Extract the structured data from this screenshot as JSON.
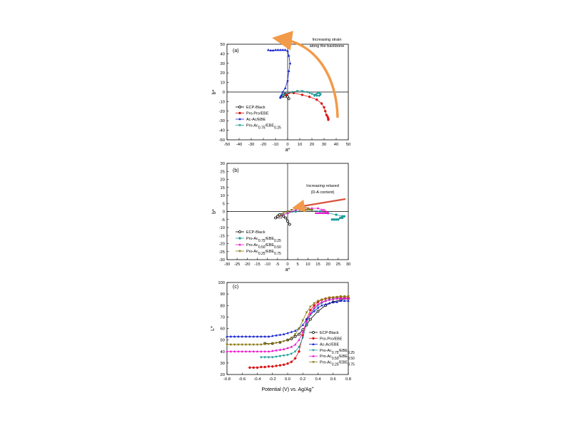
{
  "chart_data": [
    {
      "type": "scatter",
      "panel_label": "(a)",
      "xlabel": "a*",
      "ylabel": "b*",
      "xlim": [
        -50,
        50
      ],
      "ylim": [
        -50,
        50
      ],
      "xticks": [
        -50,
        -40,
        -30,
        -20,
        -10,
        0,
        10,
        20,
        30,
        40,
        50
      ],
      "yticks": [
        -50,
        -40,
        -30,
        -20,
        -10,
        0,
        10,
        20,
        30,
        40,
        50
      ],
      "annotation": "Increasing strain along the backbone",
      "legend_position": "bottom-left",
      "series": [
        {
          "name": "ECP-Black",
          "color": "#000000",
          "marker": "open-circle",
          "x": [
            -4,
            -3,
            -2,
            -1,
            0,
            1
          ],
          "y": [
            -4,
            -3,
            -2,
            -3,
            -5,
            -7
          ]
        },
        {
          "name": "Pro-Pro/EBE",
          "color": "#dd1111",
          "marker": "circle",
          "x": [
            -1,
            1,
            5,
            12,
            18,
            24,
            28,
            30,
            31,
            32,
            33,
            33.5,
            33.5
          ],
          "y": [
            -3,
            -1,
            -1,
            -3,
            -5,
            -8,
            -12,
            -16,
            -20,
            -24,
            -26,
            -28,
            -29
          ]
        },
        {
          "name": "Ac-Ac/EBE",
          "color": "#1522cc",
          "marker": "triangle-up",
          "x": [
            -16,
            -14,
            -12,
            -10,
            -8,
            -6,
            -4,
            -2,
            0,
            1,
            2,
            1,
            0,
            -2,
            -4,
            -5,
            -6,
            -6
          ],
          "y": [
            44,
            43.5,
            43.5,
            44,
            44,
            44,
            44,
            44,
            43,
            38,
            30,
            22,
            12,
            4,
            0,
            -3,
            -5,
            -6
          ]
        },
        {
          "name": "Pro-Ac0.75/EBE0.25",
          "name_html": "Pro-Ac<tspan baseline-shift='sub' font-size='5'>0.75</tspan>/EBE<tspan baseline-shift='sub' font-size='5'>0.25</tspan>",
          "color": "#1c9b9b",
          "marker": "triangle-down",
          "x": [
            -4,
            0,
            4,
            8,
            12,
            16,
            18,
            20,
            22,
            24,
            26,
            27,
            27,
            26,
            25,
            24,
            23,
            22
          ],
          "y": [
            -3,
            -1,
            0,
            1,
            1,
            0,
            -1,
            -2,
            -3,
            -4,
            -4,
            -3,
            -2,
            -1,
            -1,
            -2,
            -3,
            -4
          ]
        }
      ]
    },
    {
      "type": "scatter",
      "panel_label": "(b)",
      "xlabel": "a*",
      "ylabel": "b*",
      "xlim": [
        -30,
        30
      ],
      "ylim": [
        -30,
        30
      ],
      "xticks": [
        -30,
        -25,
        -20,
        -15,
        -10,
        -5,
        0,
        5,
        10,
        15,
        20,
        25,
        30
      ],
      "yticks": [
        -30,
        -25,
        -20,
        -15,
        -10,
        -5,
        0,
        5,
        10,
        15,
        20,
        25,
        30
      ],
      "annotation": "Increasing relaxed (D-A content)",
      "legend_position": "bottom-left",
      "series": [
        {
          "name": "ECP-Black",
          "color": "#000000",
          "marker": "open-circle",
          "x": [
            -6,
            -5,
            -4,
            -3,
            -2,
            -1,
            0,
            1
          ],
          "y": [
            -4,
            -3,
            -2,
            -2,
            -3,
            -4,
            -6,
            -8
          ]
        },
        {
          "name": "Pro-Ac0.75/EBE0.25",
          "name_html": "Pro-Ac<tspan baseline-shift='sub' font-size='5'>0.75</tspan>/EBE<tspan baseline-shift='sub' font-size='5'>0.25</tspan>",
          "color": "#1c9b9b",
          "marker": "circle",
          "x": [
            -4,
            0,
            4,
            8,
            12,
            16,
            20,
            24,
            27,
            28,
            27,
            26,
            25,
            24,
            23,
            22
          ],
          "y": [
            -3,
            -1,
            0,
            1,
            1,
            0,
            -1,
            -2,
            -3,
            -3,
            -4,
            -4,
            -5,
            -5,
            -5,
            -5
          ]
        },
        {
          "name": "Pro-Ac0.50/EBE0.50",
          "name_html": "Pro-Ac<tspan baseline-shift='sub' font-size='5'>0.50</tspan>/EBE<tspan baseline-shift='sub' font-size='5'>0.50</tspan>",
          "color": "#ee11cc",
          "marker": "triangle-up",
          "x": [
            -4,
            0,
            4,
            8,
            12,
            15,
            17,
            18,
            19,
            20,
            19,
            18,
            17,
            16,
            15,
            14
          ],
          "y": [
            -3,
            -1,
            1,
            2,
            2,
            2,
            1,
            1,
            0,
            -1,
            -1,
            -1,
            -1,
            -1,
            -1,
            -1
          ]
        },
        {
          "name": "Pro-Ac0.25/EBE0.75",
          "name_html": "Pro-Ac<tspan baseline-shift='sub' font-size='5'>0.25</tspan>/EBE<tspan baseline-shift='sub' font-size='5'>0.75</tspan>",
          "color": "#8a7a10",
          "marker": "triangle-down",
          "x": [
            -4,
            -2,
            0,
            2,
            4,
            6,
            8,
            10,
            12,
            11,
            10,
            9,
            8,
            7,
            6
          ],
          "y": [
            -3,
            -1,
            0,
            1,
            2,
            3,
            3,
            2,
            1,
            1,
            1,
            1,
            1,
            1,
            1
          ]
        }
      ]
    },
    {
      "type": "line",
      "panel_label": "(c)",
      "xlabel": "Potential (V) vs. Ag/Ag",
      "xlabel_sup": "+",
      "ylabel": "L*",
      "xlim": [
        -0.8,
        0.8
      ],
      "ylim": [
        20,
        100
      ],
      "xticks": [
        -0.8,
        -0.6,
        -0.4,
        -0.2,
        0.0,
        0.2,
        0.4,
        0.6,
        0.8
      ],
      "yticks": [
        20,
        30,
        40,
        50,
        60,
        70,
        80,
        90,
        100
      ],
      "legend_position": "right",
      "series": [
        {
          "name": "ECP-Black",
          "color": "#000000",
          "marker": "open-circle",
          "x": [
            -0.3,
            -0.2,
            -0.1,
            0.0,
            0.05,
            0.1,
            0.15,
            0.2,
            0.25,
            0.3,
            0.4,
            0.5,
            0.6,
            0.7,
            0.8
          ],
          "y": [
            47,
            47,
            48,
            50,
            51,
            53,
            55,
            59,
            63,
            68,
            75,
            80,
            83,
            85,
            86
          ]
        },
        {
          "name": "Pro-Pro/EBE",
          "color": "#dd1111",
          "marker": "circle",
          "x": [
            -0.5,
            -0.45,
            -0.4,
            -0.35,
            -0.3,
            -0.25,
            -0.2,
            -0.15,
            -0.1,
            -0.05,
            0.0,
            0.05,
            0.1,
            0.15,
            0.2,
            0.25,
            0.3,
            0.35,
            0.4,
            0.45,
            0.5,
            0.55,
            0.6,
            0.65,
            0.7,
            0.75,
            0.8
          ],
          "y": [
            26,
            26,
            26,
            26.5,
            26.5,
            27,
            27,
            27.5,
            28,
            28.5,
            29.5,
            31,
            34,
            40,
            54,
            68,
            76,
            80,
            83,
            85,
            86,
            86.5,
            87,
            87,
            87,
            87,
            87
          ]
        },
        {
          "name": "Ac-Ac/EBE",
          "color": "#1522cc",
          "marker": "triangle-up",
          "x": [
            -0.8,
            -0.75,
            -0.7,
            -0.65,
            -0.6,
            -0.55,
            -0.5,
            -0.45,
            -0.4,
            -0.35,
            -0.3,
            -0.25,
            -0.2,
            -0.15,
            -0.1,
            -0.05,
            0.0,
            0.05,
            0.1,
            0.15,
            0.2,
            0.25,
            0.3,
            0.35,
            0.4,
            0.45,
            0.5,
            0.55,
            0.6,
            0.65,
            0.7,
            0.75,
            0.8
          ],
          "y": [
            53,
            53,
            53,
            53,
            53,
            53,
            53,
            53,
            53,
            53,
            53,
            53,
            53.5,
            54,
            54.5,
            55,
            56,
            57,
            58,
            60,
            63,
            68,
            72,
            75,
            78,
            80,
            81,
            82,
            83,
            83,
            84,
            84,
            84
          ]
        },
        {
          "name": "Pro-Ac0.75/EBE0.25",
          "name_html": "Pro-Ac<tspan baseline-shift='sub' font-size='5'>0.75</tspan>/EBE<tspan baseline-shift='sub' font-size='5'>0.25</tspan>",
          "color": "#1c9b9b",
          "marker": "triangle-down",
          "x": [
            -0.35,
            -0.3,
            -0.25,
            -0.2,
            -0.15,
            -0.1,
            -0.05,
            0.0,
            0.05,
            0.1,
            0.15,
            0.2,
            0.25,
            0.3,
            0.35,
            0.4,
            0.45,
            0.5,
            0.55,
            0.6,
            0.65,
            0.7,
            0.75,
            0.8
          ],
          "y": [
            35,
            35,
            35,
            35,
            35.5,
            36,
            36.5,
            37,
            38,
            40,
            44,
            52,
            64,
            72,
            77,
            80,
            82,
            84,
            85,
            85.5,
            86,
            86,
            86,
            86
          ]
        },
        {
          "name": "Pro-Ac0.50/EBE0.50",
          "name_html": "Pro-Ac<tspan baseline-shift='sub' font-size='5'>0.50</tspan>/EBE<tspan baseline-shift='sub' font-size='5'>0.50</tspan>",
          "color": "#ee11cc",
          "marker": "triangle-up",
          "x": [
            -0.8,
            -0.75,
            -0.7,
            -0.65,
            -0.6,
            -0.55,
            -0.5,
            -0.45,
            -0.4,
            -0.35,
            -0.3,
            -0.25,
            -0.2,
            -0.15,
            -0.1,
            -0.05,
            0.0,
            0.05,
            0.1,
            0.15,
            0.2,
            0.25,
            0.3,
            0.35,
            0.4,
            0.45,
            0.5,
            0.55,
            0.6,
            0.65,
            0.7,
            0.75,
            0.8
          ],
          "y": [
            40,
            40,
            40,
            40,
            40,
            40,
            40,
            40,
            40,
            40,
            40,
            40,
            40.5,
            41,
            41.5,
            42,
            43,
            44,
            46,
            50,
            57,
            66,
            73,
            78,
            81,
            83,
            84,
            85,
            85.5,
            86,
            86,
            86,
            86
          ]
        },
        {
          "name": "Pro-Ac0.25/EBE0.75",
          "name_html": "Pro-Ac<tspan baseline-shift='sub' font-size='5'>0.25</tspan>/EBE<tspan baseline-shift='sub' font-size='5'>0.75</tspan>",
          "color": "#8a7a10",
          "marker": "triangle-down",
          "x": [
            -0.8,
            -0.75,
            -0.7,
            -0.65,
            -0.6,
            -0.55,
            -0.5,
            -0.45,
            -0.4,
            -0.35,
            -0.3,
            -0.25,
            -0.2,
            -0.15,
            -0.1,
            -0.05,
            0.0,
            0.05,
            0.1,
            0.15,
            0.2,
            0.25,
            0.3,
            0.35,
            0.4,
            0.45,
            0.5,
            0.55,
            0.6,
            0.65,
            0.7,
            0.75,
            0.8
          ],
          "y": [
            46,
            46,
            46,
            46,
            46,
            46,
            46,
            46,
            46,
            46,
            46.5,
            46.5,
            47,
            47.5,
            48,
            49,
            50,
            52,
            55,
            60,
            67,
            74,
            79,
            82,
            84,
            85,
            86,
            87,
            87,
            87.5,
            88,
            88,
            88
          ]
        }
      ]
    }
  ]
}
